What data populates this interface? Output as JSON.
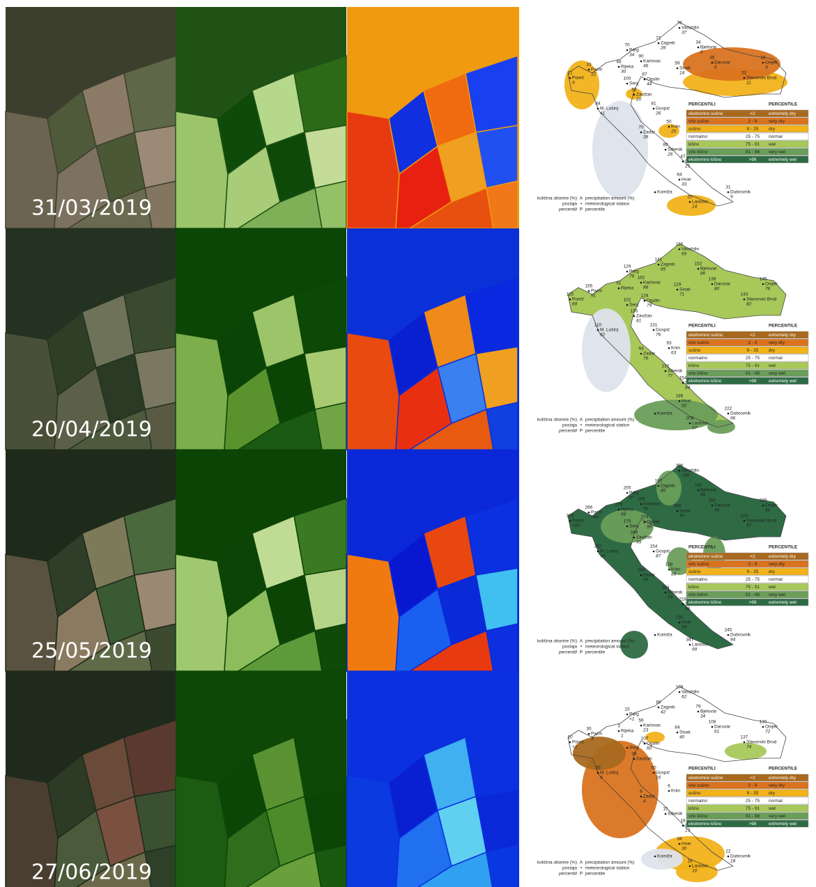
{
  "panels": [
    {
      "date": "31/03/2019",
      "stations": [
        {
          "name": "Varaždin",
          "amount": 78,
          "percentile": 37
        },
        {
          "name": "Zagreb",
          "amount": 71,
          "percentile": 28
        },
        {
          "name": "Bjelovar",
          "amount": 34,
          "percentile": 6
        },
        {
          "name": "Daruvar",
          "amount": 35,
          "percentile": 5
        },
        {
          "name": "Osijek",
          "amount": 18,
          "percentile": 3
        },
        {
          "name": "Sisak",
          "amount": 59,
          "percentile": 14
        },
        {
          "name": "Karlovac",
          "amount": 90,
          "percentile": 46
        },
        {
          "name": "Slavonski Brod",
          "amount": 52,
          "percentile": 11
        },
        {
          "name": "Parg",
          "amount": 70,
          "percentile": 34
        },
        {
          "name": "Rijeka",
          "amount": 48,
          "percentile": 30
        },
        {
          "name": "Pazin",
          "amount": 33,
          "percentile": 12
        },
        {
          "name": "Poreč",
          "amount": 21,
          "percentile": 9
        },
        {
          "name": "Senj",
          "amount": 100
        },
        {
          "name": "Ogulin",
          "amount": 87,
          "percentile": 44
        },
        {
          "name": "Zavižan",
          "amount": 58,
          "percentile": 20
        },
        {
          "name": "Gospić",
          "amount": 81,
          "percentile": 26
        },
        {
          "name": "M. Lošinj",
          "amount": 84,
          "percentile": 41
        },
        {
          "name": "Zadar",
          "amount": 70,
          "percentile": 38
        },
        {
          "name": "Knin",
          "amount": 50,
          "percentile": 20
        },
        {
          "name": "Šibenik",
          "amount": 88,
          "percentile": 26
        },
        {
          "name": "Split",
          "amount": 47,
          "percentile": 25
        },
        {
          "name": "Komiža"
        },
        {
          "name": "Hvar",
          "amount": 64,
          "percentile": 33
        },
        {
          "name": "Lastovo",
          "amount": 20,
          "percentile": 14
        },
        {
          "name": "Dubrovnik",
          "amount": 31,
          "percentile": 9
        }
      ]
    },
    {
      "date": "20/04/2019",
      "stations": [
        {
          "name": "Varaždin",
          "amount": 116,
          "percentile": 69
        },
        {
          "name": "Zagreb",
          "amount": 141,
          "percentile": 65
        },
        {
          "name": "Bjelovar",
          "amount": 152,
          "percentile": 86
        },
        {
          "name": "Daruvar",
          "amount": 138,
          "percentile": 80
        },
        {
          "name": "Osijek",
          "amount": 145,
          "percentile": 78
        },
        {
          "name": "Sisak",
          "amount": 129,
          "percentile": 71
        },
        {
          "name": "Karlovac",
          "amount": 162,
          "percentile": 88
        },
        {
          "name": "Slavonski Brod",
          "amount": 143,
          "percentile": 82
        },
        {
          "name": "Parg",
          "amount": 129,
          "percentile": 76
        },
        {
          "name": "Rijeka",
          "amount": 91
        },
        {
          "name": "Pazin",
          "amount": 155,
          "percentile": 91
        },
        {
          "name": "Poreč",
          "amount": 115,
          "percentile": 69
        },
        {
          "name": "Senj",
          "amount": 102
        },
        {
          "name": "Ogulin",
          "amount": 128,
          "percentile": 79
        },
        {
          "name": "Zavižan",
          "amount": 135,
          "percentile": 81
        },
        {
          "name": "Gospić",
          "amount": 131,
          "percentile": 76
        },
        {
          "name": "M. Lošinj",
          "amount": 110,
          "percentile": 62
        },
        {
          "name": "Zadar",
          "amount": 93,
          "percentile": 76
        },
        {
          "name": "Knin",
          "amount": 93,
          "percentile": 63
        },
        {
          "name": "Šibenik",
          "amount": 132,
          "percentile": 77
        },
        {
          "name": "Split",
          "amount": 154,
          "percentile": 84
        },
        {
          "name": "Komiža"
        },
        {
          "name": "Hvar",
          "amount": 186,
          "percentile": 92
        },
        {
          "name": "Lastovo",
          "amount": 208,
          "percentile": 97
        },
        {
          "name": "Dubrovnik",
          "amount": 222,
          "percentile": 96
        }
      ]
    },
    {
      "date": "25/05/2019",
      "stations": [
        {
          "name": "Varaždin",
          "amount": 306,
          "percentile": ">98"
        },
        {
          "name": "Zagreb",
          "amount": 167,
          "percentile": 85
        },
        {
          "name": "Bjelovar",
          "amount": 243,
          "percentile": 99
        },
        {
          "name": "Daruvar",
          "amount": 280,
          "percentile": 99
        },
        {
          "name": "Osijek",
          "amount": 239,
          "percentile": 99
        },
        {
          "name": "Sisak",
          "amount": 300,
          "percentile": 99
        },
        {
          "name": "Karlovac",
          "amount": 195,
          "percentile": 99
        },
        {
          "name": "Slavonski Brod",
          "amount": 223,
          "percentile": 97
        },
        {
          "name": "Parg",
          "amount": 205,
          "percentile": 97
        },
        {
          "name": "Rijeka",
          "amount": 276,
          "percentile": 99
        },
        {
          "name": "Pazin",
          "amount": 266,
          "percentile": ">98"
        },
        {
          "name": "Poreč",
          "amount": 318,
          "percentile": ">99"
        },
        {
          "name": "Senj",
          "amount": 175
        },
        {
          "name": "Ogulin",
          "amount": 274,
          "percentile": 99
        },
        {
          "name": "Zavižan",
          "amount": 246,
          "percentile": 99
        },
        {
          "name": "Gospić",
          "amount": 154,
          "percentile": 87
        },
        {
          "name": "M. Lošinj",
          "amount": 302,
          "percentile": 99
        },
        {
          "name": "Zadar",
          "amount": 266,
          "percentile": 99
        },
        {
          "name": "Knin",
          "amount": 158,
          "percentile": 88
        },
        {
          "name": "Šibenik",
          "amount": 183,
          "percentile": 93
        },
        {
          "name": "Split",
          "amount": 218,
          "percentile": 96
        },
        {
          "name": "Komiža"
        },
        {
          "name": "Hvar",
          "amount": 230,
          "percentile": 99
        },
        {
          "name": "Lastovo",
          "amount": 347,
          "percentile": 99
        },
        {
          "name": "Dubrovnik",
          "amount": 245,
          "percentile": 94
        }
      ]
    },
    {
      "date": "27/06/2019",
      "stations": [
        {
          "name": "Varaždin",
          "amount": 108,
          "percentile": 62
        },
        {
          "name": "Zagreb",
          "amount": 89,
          "percentile": 42
        },
        {
          "name": "Bjelovar",
          "amount": 79,
          "percentile": 34
        },
        {
          "name": "Daruvar",
          "amount": 108,
          "percentile": 61
        },
        {
          "name": "Osijek",
          "amount": 130,
          "percentile": 72
        },
        {
          "name": "Sisak",
          "amount": 84,
          "percentile": 40
        },
        {
          "name": "Karlovac",
          "amount": 56,
          "percentile": 23
        },
        {
          "name": "Slavonski Brod",
          "amount": 137,
          "percentile": 74
        },
        {
          "name": "Parg",
          "amount": 15,
          "percentile": "<1"
        },
        {
          "name": "Rijeka",
          "amount": 3,
          "percentile": 1
        },
        {
          "name": "Pazin",
          "amount": 30,
          "percentile": 3
        },
        {
          "name": "Poreč",
          "amount": 10,
          "percentile": "<1"
        },
        {
          "name": "Senj"
        },
        {
          "name": "Ogulin",
          "amount": 107,
          "percentile": 60
        },
        {
          "name": "Zavižan",
          "amount": 38
        },
        {
          "name": "Gospić",
          "amount": 50,
          "percentile": 16
        },
        {
          "name": "M. Lošinj",
          "amount": 20,
          "percentile": 4
        },
        {
          "name": "Zadar",
          "amount": 8,
          "percentile": 4
        },
        {
          "name": "Knin",
          "amount": 6
        },
        {
          "name": "Šibenik",
          "amount": 15
        },
        {
          "name": "Split",
          "amount": 18,
          "percentile": 13
        },
        {
          "name": "Komiža"
        },
        {
          "name": "Hvar",
          "amount": 34,
          "percentile": 30
        },
        {
          "name": "Lastovo",
          "amount": 18,
          "percentile": 10
        },
        {
          "name": "Dubrovnik",
          "amount": 22,
          "percentile": 18
        }
      ]
    }
  ],
  "legend": {
    "header_hr": "PERCENTILI",
    "header_en": "PERCENTILE",
    "rows": [
      {
        "hr": "ekstremno sušno",
        "range": "<2",
        "en": "extremely dry",
        "color": "#a8691f"
      },
      {
        "hr": "vrlo sušno",
        "range": "2 - 9",
        "en": "very dry",
        "color": "#d9731f"
      },
      {
        "hr": "sušno",
        "range": "9 - 25",
        "en": "dry",
        "color": "#f1b21a"
      },
      {
        "hr": "normalno",
        "range": "25 - 75",
        "en": "normal",
        "color": "#ffffff"
      },
      {
        "hr": "kišno",
        "range": "75 - 91",
        "en": "wet",
        "color": "#a8c85a"
      },
      {
        "hr": "vrlo kišno",
        "range": "91 - 98",
        "en": "very wet",
        "color": "#6a9e5a"
      },
      {
        "hr": "ekstremno kišno",
        "range": ">98",
        "en": "extremely wet",
        "color": "#2e6b45"
      }
    ]
  },
  "notes": [
    {
      "hr": "količina oborine (%)",
      "symbol": "A",
      "en": "precipitation amount (%)"
    },
    {
      "hr": "postaja",
      "symbol": "•",
      "en": "meteorological station"
    },
    {
      "hr": "percentili",
      "symbol": "P",
      "en": "percentile"
    }
  ]
}
